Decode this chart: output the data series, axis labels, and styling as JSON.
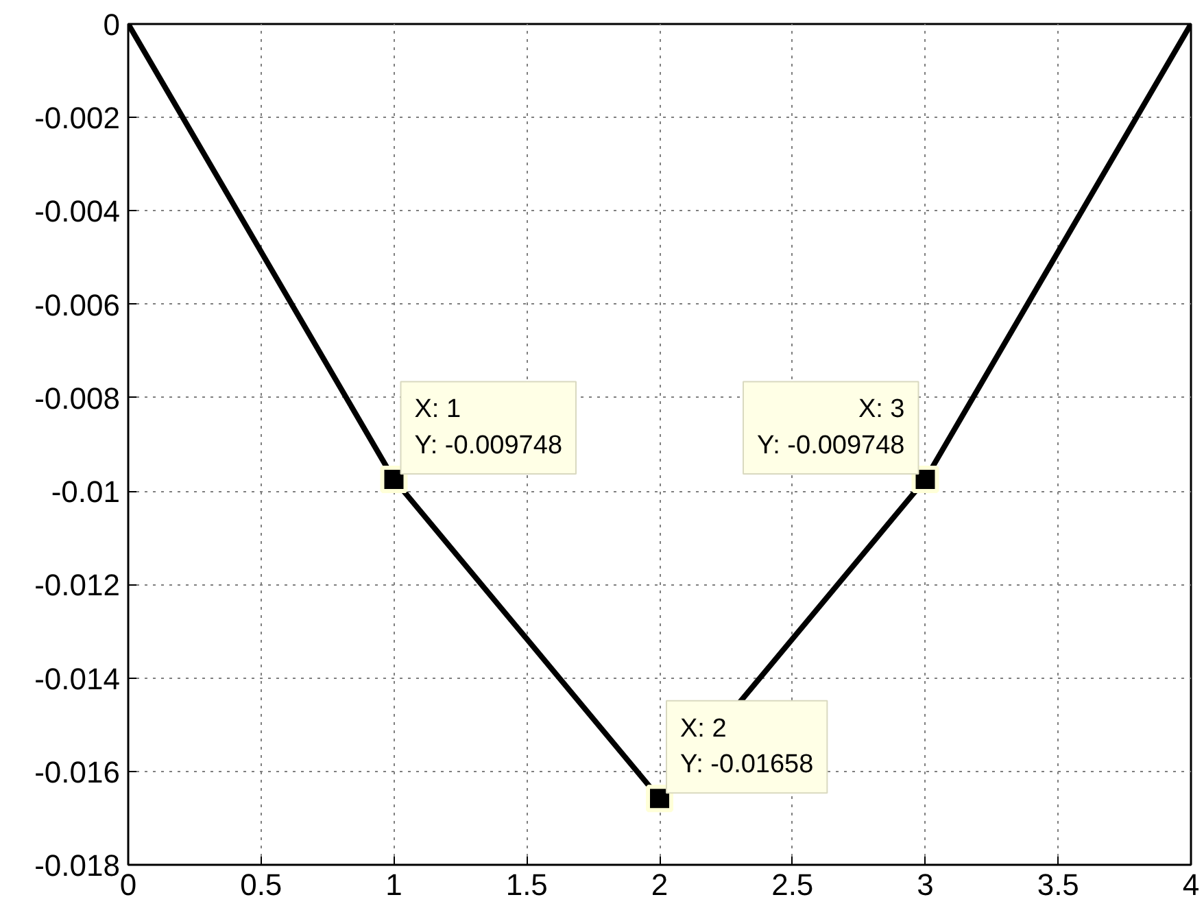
{
  "chart_data": {
    "type": "line",
    "x": [
      0,
      1,
      2,
      3,
      4
    ],
    "series": [
      {
        "color": "#000000",
        "values": [
          0,
          -0.009748,
          -0.01658,
          -0.009748,
          0
        ]
      }
    ],
    "xlim": [
      0,
      4
    ],
    "xticks": [
      0,
      0.5,
      1,
      1.5,
      2,
      2.5,
      3,
      3.5,
      4
    ],
    "ylim": [
      -0.018,
      0
    ],
    "yticks": [
      -0.018,
      -0.016,
      -0.014,
      -0.012,
      -0.01,
      -0.008,
      -0.006,
      -0.004,
      -0.002,
      0
    ],
    "grid": true,
    "annotations": [
      {
        "text": "X: 1\nY: -0.009748",
        "x": 1,
        "y": -0.009748
      },
      {
        "text": "X: 3\nY: -0.009748",
        "x": 3,
        "y": -0.009748
      },
      {
        "text": "X: 2\nY: -0.01658",
        "x": 2,
        "y": -0.01658
      }
    ]
  }
}
